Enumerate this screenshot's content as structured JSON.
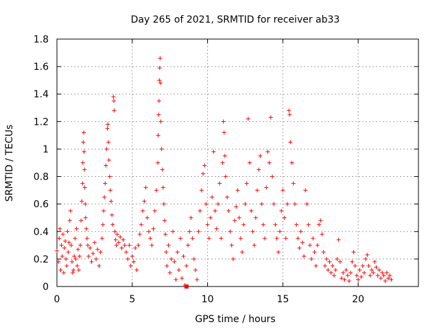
{
  "chart_data": {
    "type": "scatter",
    "title": "Day 265 of 2021, SRMTID for receiver ab33",
    "xlabel": "GPS time / hours",
    "ylabel": "SRMTID / TECUs",
    "xlim": [
      0,
      24
    ],
    "ylim": [
      0,
      1.8
    ],
    "xticks": [
      0,
      5,
      10,
      15,
      20
    ],
    "xtick_labels": [
      "0",
      "5",
      "10",
      "15",
      "20"
    ],
    "yticks": [
      0,
      0.2,
      0.4,
      0.6,
      0.8,
      1,
      1.2,
      1.4,
      1.6,
      1.8
    ],
    "ytick_labels": [
      "0",
      "0.2",
      "0.4",
      "0.6",
      "0.8",
      "1",
      "1.2",
      "1.4",
      "1.6",
      "1.8"
    ],
    "grid": true,
    "marker": "plus",
    "marker_color": "#ff0000",
    "series": [
      {
        "name": "SRMTID",
        "points": [
          [
            0.0,
            0.26
          ],
          [
            0.1,
            0.18
          ],
          [
            0.15,
            0.35
          ],
          [
            0.2,
            0.42
          ],
          [
            0.25,
            0.12
          ],
          [
            0.3,
            0.3
          ],
          [
            0.35,
            0.22
          ],
          [
            0.4,
            0.38
          ],
          [
            0.45,
            0.1
          ],
          [
            0.5,
            0.28
          ],
          [
            0.55,
            0.33
          ],
          [
            0.6,
            0.2
          ],
          [
            0.65,
            0.15
          ],
          [
            0.7,
            0.4
          ],
          [
            0.75,
            0.25
          ],
          [
            0.8,
            0.32
          ],
          [
            0.85,
            0.48
          ],
          [
            0.9,
            0.55
          ],
          [
            0.95,
            0.3
          ],
          [
            1.0,
            0.18
          ],
          [
            1.05,
            0.1
          ],
          [
            1.1,
            0.12
          ],
          [
            1.15,
            0.22
          ],
          [
            1.2,
            0.35
          ],
          [
            1.25,
            0.2
          ],
          [
            1.3,
            0.42
          ],
          [
            1.35,
            0.15
          ],
          [
            1.4,
            0.27
          ],
          [
            1.45,
            0.12
          ],
          [
            1.5,
            0.22
          ],
          [
            1.55,
            0.3
          ],
          [
            1.6,
            0.48
          ],
          [
            1.65,
            0.62
          ],
          [
            1.7,
            0.75
          ],
          [
            1.72,
            0.9
          ],
          [
            1.75,
            1.05
          ],
          [
            1.78,
            1.12
          ],
          [
            1.8,
            0.98
          ],
          [
            1.83,
            0.85
          ],
          [
            1.85,
            0.72
          ],
          [
            1.88,
            0.6
          ],
          [
            1.9,
            0.5
          ],
          [
            1.95,
            0.42
          ],
          [
            2.0,
            0.35
          ],
          [
            2.05,
            0.3
          ],
          [
            2.1,
            0.22
          ],
          [
            2.2,
            0.28
          ],
          [
            2.3,
            0.18
          ],
          [
            2.4,
            0.24
          ],
          [
            2.5,
            0.32
          ],
          [
            2.6,
            0.2
          ],
          [
            2.7,
            0.27
          ],
          [
            2.8,
            0.15
          ],
          [
            2.9,
            0.25
          ],
          [
            3.0,
            0.35
          ],
          [
            3.05,
            0.45
          ],
          [
            3.1,
            0.55
          ],
          [
            3.15,
            0.65
          ],
          [
            3.2,
            0.75
          ],
          [
            3.25,
            0.88
          ],
          [
            3.3,
            1.0
          ],
          [
            3.35,
            1.15
          ],
          [
            3.38,
            1.18
          ],
          [
            3.42,
            1.05
          ],
          [
            3.45,
            0.92
          ],
          [
            3.5,
            0.8
          ],
          [
            3.55,
            0.7
          ],
          [
            3.6,
            0.62
          ],
          [
            3.65,
            0.52
          ],
          [
            3.7,
            0.45
          ],
          [
            3.75,
            1.38
          ],
          [
            3.78,
            1.35
          ],
          [
            3.8,
            1.28
          ],
          [
            3.85,
            0.4
          ],
          [
            3.9,
            0.34
          ],
          [
            3.95,
            0.3
          ],
          [
            4.0,
            0.38
          ],
          [
            4.1,
            0.32
          ],
          [
            4.2,
            0.36
          ],
          [
            4.3,
            0.28
          ],
          [
            4.4,
            0.34
          ],
          [
            4.5,
            0.3
          ],
          [
            4.6,
            0.25
          ],
          [
            4.7,
            0.2
          ],
          [
            4.8,
            0.3
          ],
          [
            4.9,
            0.15
          ],
          [
            5.0,
            0.22
          ],
          [
            5.1,
            0.18
          ],
          [
            5.2,
            0.28
          ],
          [
            5.3,
            0.12
          ],
          [
            5.4,
            0.3
          ],
          [
            5.5,
            0.38
          ],
          [
            5.6,
            0.45
          ],
          [
            5.7,
            0.55
          ],
          [
            5.8,
            0.62
          ],
          [
            5.9,
            0.72
          ],
          [
            6.0,
            0.5
          ],
          [
            6.1,
            0.4
          ],
          [
            6.2,
            0.35
          ],
          [
            6.3,
            0.3
          ],
          [
            6.4,
            0.42
          ],
          [
            6.5,
            0.55
          ],
          [
            6.6,
            0.7
          ],
          [
            6.7,
            0.9
          ],
          [
            6.72,
            1.1
          ],
          [
            6.75,
            1.25
          ],
          [
            6.78,
            1.35
          ],
          [
            6.8,
            1.5
          ],
          [
            6.82,
            1.59
          ],
          [
            6.85,
            1.66
          ],
          [
            6.88,
            1.48
          ],
          [
            6.9,
            1.2
          ],
          [
            6.95,
            1.0
          ],
          [
            7.0,
            0.85
          ],
          [
            7.05,
            0.72
          ],
          [
            7.1,
            0.6
          ],
          [
            7.15,
            0.48
          ],
          [
            7.2,
            0.38
          ],
          [
            7.25,
            0.25
          ],
          [
            7.3,
            0.15
          ],
          [
            7.4,
            0.3
          ],
          [
            7.5,
            0.1
          ],
          [
            7.6,
            0.2
          ],
          [
            7.7,
            0.4
          ],
          [
            7.8,
            0.18
          ],
          [
            7.9,
            0.05
          ],
          [
            8.0,
            0.25
          ],
          [
            8.1,
            0.12
          ],
          [
            8.2,
            0.35
          ],
          [
            8.3,
            0.06
          ],
          [
            8.4,
            0.22
          ],
          [
            8.5,
            0.01
          ],
          [
            8.6,
            0.15
          ],
          [
            8.7,
            0.3
          ],
          [
            8.8,
            0.4
          ],
          [
            8.9,
            0.5
          ],
          [
            9.0,
            0.35
          ],
          [
            9.1,
            0.2
          ],
          [
            9.2,
            0.12
          ],
          [
            9.3,
            0.05
          ],
          [
            9.4,
            0.4
          ],
          [
            9.5,
            0.55
          ],
          [
            9.6,
            0.7
          ],
          [
            9.7,
            0.82
          ],
          [
            9.8,
            0.88
          ],
          [
            9.9,
            0.6
          ],
          [
            10.0,
            0.45
          ],
          [
            10.1,
            0.35
          ],
          [
            10.2,
            0.5
          ],
          [
            10.3,
            0.65
          ],
          [
            10.4,
            0.98
          ],
          [
            10.5,
            0.55
          ],
          [
            10.6,
            0.42
          ],
          [
            10.7,
            0.6
          ],
          [
            10.8,
            0.75
          ],
          [
            10.9,
            0.35
          ],
          [
            11.0,
            0.9
          ],
          [
            11.05,
            1.2
          ],
          [
            11.1,
            1.12
          ],
          [
            11.15,
            0.95
          ],
          [
            11.2,
            0.8
          ],
          [
            11.3,
            0.65
          ],
          [
            11.4,
            0.55
          ],
          [
            11.5,
            0.4
          ],
          [
            11.6,
            0.3
          ],
          [
            11.7,
            0.2
          ],
          [
            11.8,
            0.48
          ],
          [
            11.9,
            0.58
          ],
          [
            12.0,
            0.7
          ],
          [
            12.1,
            0.5
          ],
          [
            12.2,
            0.35
          ],
          [
            12.3,
            0.25
          ],
          [
            12.4,
            0.45
          ],
          [
            12.5,
            0.6
          ],
          [
            12.6,
            0.75
          ],
          [
            12.7,
            1.22
          ],
          [
            12.8,
            0.9
          ],
          [
            12.9,
            0.55
          ],
          [
            13.0,
            0.4
          ],
          [
            13.1,
            0.3
          ],
          [
            13.2,
            0.5
          ],
          [
            13.3,
            0.7
          ],
          [
            13.4,
            0.85
          ],
          [
            13.5,
            0.95
          ],
          [
            13.6,
            0.6
          ],
          [
            13.7,
            0.45
          ],
          [
            13.8,
            0.35
          ],
          [
            13.9,
            0.72
          ],
          [
            14.0,
            0.98
          ],
          [
            14.1,
            0.9
          ],
          [
            14.2,
            1.23
          ],
          [
            14.3,
            0.8
          ],
          [
            14.4,
            0.6
          ],
          [
            14.5,
            0.45
          ],
          [
            14.6,
            0.35
          ],
          [
            14.7,
            0.25
          ],
          [
            14.8,
            0.4
          ],
          [
            14.9,
            0.55
          ],
          [
            15.0,
            0.7
          ],
          [
            15.1,
            0.5
          ],
          [
            15.2,
            0.35
          ],
          [
            15.3,
            0.6
          ],
          [
            15.4,
            1.28
          ],
          [
            15.45,
            1.25
          ],
          [
            15.5,
            1.05
          ],
          [
            15.6,
            0.9
          ],
          [
            15.7,
            0.75
          ],
          [
            15.8,
            0.6
          ],
          [
            15.9,
            0.45
          ],
          [
            16.0,
            0.35
          ],
          [
            16.1,
            0.28
          ],
          [
            16.2,
            0.4
          ],
          [
            16.3,
            0.32
          ],
          [
            16.4,
            0.22
          ],
          [
            16.5,
            0.7
          ],
          [
            16.6,
            0.6
          ],
          [
            16.7,
            0.45
          ],
          [
            16.8,
            0.3
          ],
          [
            16.9,
            0.2
          ],
          [
            17.0,
            0.35
          ],
          [
            17.1,
            0.25
          ],
          [
            17.2,
            0.15
          ],
          [
            17.3,
            0.3
          ],
          [
            17.4,
            0.45
          ],
          [
            17.5,
            0.48
          ],
          [
            17.6,
            0.38
          ],
          [
            17.7,
            0.25
          ],
          [
            17.8,
            0.15
          ],
          [
            17.9,
            0.2
          ],
          [
            18.0,
            0.12
          ],
          [
            18.1,
            0.18
          ],
          [
            18.2,
            0.1
          ],
          [
            18.3,
            0.15
          ],
          [
            18.4,
            0.08
          ],
          [
            18.5,
            0.12
          ],
          [
            18.6,
            0.2
          ],
          [
            18.7,
            0.34
          ],
          [
            18.8,
            0.18
          ],
          [
            18.9,
            0.06
          ],
          [
            19.0,
            0.1
          ],
          [
            19.1,
            0.05
          ],
          [
            19.2,
            0.12
          ],
          [
            19.3,
            0.08
          ],
          [
            19.4,
            0.04
          ],
          [
            19.5,
            0.1
          ],
          [
            19.6,
            0.18
          ],
          [
            19.7,
            0.25
          ],
          [
            19.8,
            0.15
          ],
          [
            19.9,
            0.08
          ],
          [
            20.0,
            0.05
          ],
          [
            20.1,
            0.12
          ],
          [
            20.2,
            0.07
          ],
          [
            20.3,
            0.15
          ],
          [
            20.4,
            0.1
          ],
          [
            20.5,
            0.2
          ],
          [
            20.6,
            0.23
          ],
          [
            20.7,
            0.15
          ],
          [
            20.8,
            0.08
          ],
          [
            20.9,
            0.12
          ],
          [
            21.0,
            0.1
          ],
          [
            21.1,
            0.18
          ],
          [
            21.2,
            0.14
          ],
          [
            21.3,
            0.08
          ],
          [
            21.4,
            0.12
          ],
          [
            21.5,
            0.06
          ],
          [
            21.6,
            0.1
          ],
          [
            21.7,
            0.08
          ],
          [
            21.8,
            0.04
          ],
          [
            21.9,
            0.1
          ],
          [
            22.0,
            0.06
          ],
          [
            22.1,
            0.08
          ],
          [
            22.2,
            0.05
          ]
        ]
      }
    ],
    "extra_marker": {
      "x": 8.6,
      "y": 0.0,
      "shape": "square"
    }
  }
}
